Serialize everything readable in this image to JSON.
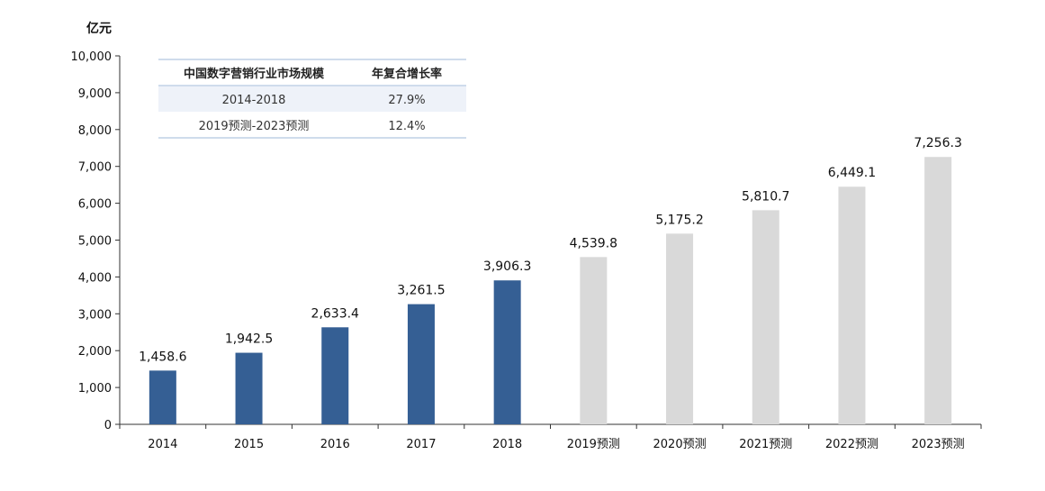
{
  "chart_data": {
    "type": "bar",
    "unit_label": "亿元",
    "categories": [
      "2014",
      "2015",
      "2016",
      "2017",
      "2018",
      "2019预测",
      "2020预测",
      "2021预测",
      "2022预测",
      "2023预测"
    ],
    "values": [
      1458.6,
      1942.5,
      2633.4,
      3261.5,
      3906.3,
      4539.8,
      5175.2,
      5810.7,
      6449.1,
      7256.3
    ],
    "value_labels": [
      "1,458.6",
      "1,942.5",
      "2,633.4",
      "3,261.5",
      "3,906.3",
      "4,539.8",
      "5,175.2",
      "5,810.7",
      "6,449.1",
      "7,256.3"
    ],
    "forecast": [
      false,
      false,
      false,
      false,
      false,
      true,
      true,
      true,
      true,
      true
    ],
    "colors": {
      "actual": "#355f94",
      "forecast": "#d9d9d9"
    },
    "ylim": [
      0,
      10000
    ],
    "yticks": [
      0,
      1000,
      2000,
      3000,
      4000,
      5000,
      6000,
      7000,
      8000,
      9000,
      10000
    ],
    "ytick_labels": [
      "0",
      "1,000",
      "2,000",
      "3,000",
      "4,000",
      "5,000",
      "6,000",
      "7,000",
      "8,000",
      "9,000",
      "10,000"
    ],
    "grid": false,
    "legend": "none",
    "table": {
      "headers": [
        "中国数字营销行业市场规模",
        "年复合增长率"
      ],
      "rows": [
        [
          "2014-2018",
          "27.9%"
        ],
        [
          "2019预测-2023预测",
          "12.4%"
        ]
      ]
    }
  }
}
